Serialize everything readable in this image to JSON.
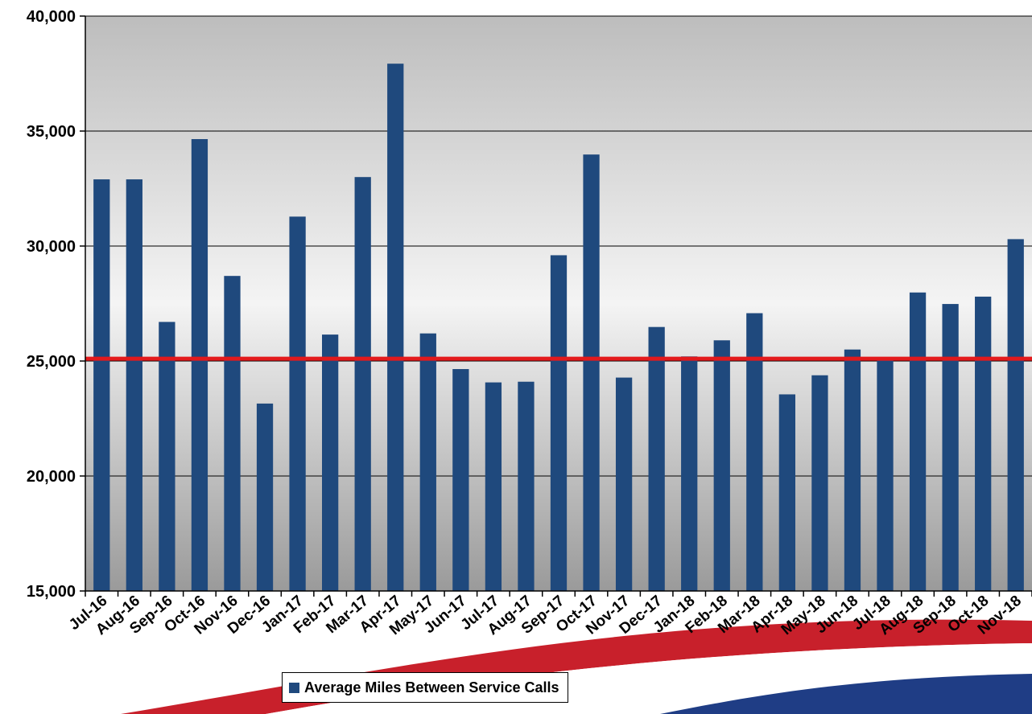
{
  "chart_data": {
    "type": "bar",
    "categories": [
      "Jul-16",
      "Aug-16",
      "Sep-16",
      "Oct-16",
      "Nov-16",
      "Dec-16",
      "Jan-17",
      "Feb-17",
      "Mar-17",
      "Apr-17",
      "May-17",
      "Jun-17",
      "Jul-17",
      "Aug-17",
      "Sep-17",
      "Oct-17",
      "Nov-17",
      "Dec-17",
      "Jan-18",
      "Feb-18",
      "Mar-18",
      "Apr-18",
      "May-18",
      "Jun-18",
      "Jul-18",
      "Aug-18",
      "Sep-18",
      "Oct-18",
      "Nov-18"
    ],
    "series": [
      {
        "name": "Average Miles Between Service Calls",
        "color": "#1f497d",
        "values": [
          32900,
          32900,
          26700,
          34650,
          28700,
          23150,
          31280,
          26150,
          33000,
          37930,
          26200,
          24650,
          24070,
          24100,
          29600,
          33980,
          24280,
          26480,
          25200,
          25900,
          27080,
          23550,
          24380,
          25500,
          25100,
          27980,
          27480,
          27800,
          30300
        ]
      }
    ],
    "target_line": {
      "value": 25100,
      "color": "#e31a1c"
    },
    "yticks": [
      "15,000",
      "20,000",
      "25,000",
      "30,000",
      "35,000",
      "40,000"
    ],
    "ylim": [
      15000,
      40000
    ],
    "grid": true,
    "legend_position": "bottom",
    "title": "",
    "xlabel": "",
    "ylabel": ""
  },
  "legend": {
    "label": "Average Miles Between Service Calls"
  },
  "colors": {
    "bar": "#1f497d",
    "target": "#e31a1c",
    "plot_bg_top": "#c0c0c0",
    "plot_bg_mid": "#f2f2f2",
    "plot_bg_bottom": "#9c9c9c",
    "swoosh_red": "#c8202b",
    "swoosh_blue": "#1f3d85"
  }
}
